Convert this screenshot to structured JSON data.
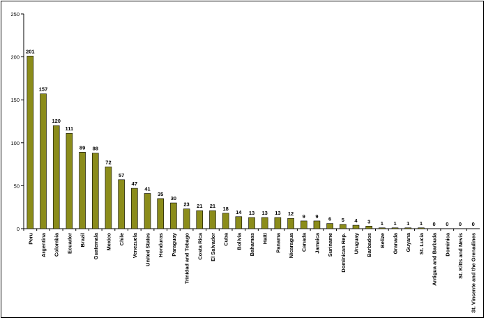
{
  "chart_data": {
    "type": "bar",
    "title": "",
    "xlabel": "",
    "ylabel": "",
    "ylim": [
      0,
      250
    ],
    "yticks": [
      0,
      50,
      100,
      150,
      200,
      250
    ],
    "grid": false,
    "legend": "none",
    "bar_color": "#8b8c1a",
    "categories": [
      "Peru",
      "Argentina",
      "Colombia",
      "Ecuador",
      "Brazil",
      "Guatemala",
      "Mexico",
      "Chile",
      "Venezuela",
      "United States",
      "Honduras",
      "Paraguay",
      "Trinidad and Tobago",
      "Costa Rica",
      "El Salvador",
      "Cuba",
      "Bolivia",
      "Bahamas",
      "Haiti",
      "Panama",
      "Nicaragua",
      "Canada",
      "Jamaica",
      "Suriname",
      "Dominican Rep.",
      "Uruguay",
      "Barbados",
      "Belize",
      "Granada",
      "Guyana",
      "St. Lucia",
      "Antigua and Barbuda",
      "Dominica",
      "St. Kitts and Nevis",
      "St. Vincente and the Grenadines"
    ],
    "values": [
      201,
      157,
      120,
      111,
      89,
      88,
      72,
      57,
      47,
      41,
      35,
      30,
      23,
      21,
      21,
      18,
      14,
      13,
      13,
      13,
      12,
      9,
      9,
      6,
      5,
      4,
      3,
      1,
      1,
      1,
      1,
      0,
      0,
      0,
      0
    ]
  }
}
